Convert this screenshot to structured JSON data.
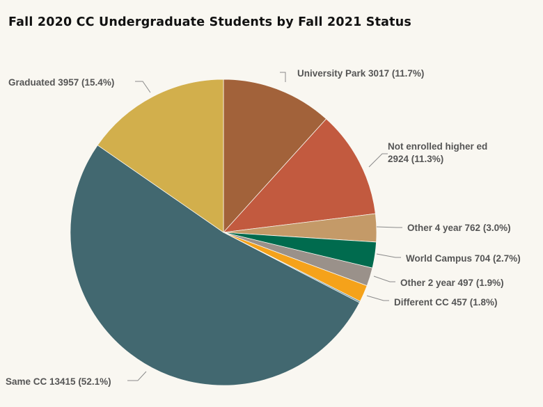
{
  "chart_data": {
    "type": "pie",
    "title": "Fall 2020 CC Undergraduate Students by Fall 2021 Status",
    "slices": [
      {
        "name": "University Park",
        "value": 3017,
        "percent": "11.7%",
        "color": "#a2623a"
      },
      {
        "name": "Not enrolled higher ed",
        "value": 2924,
        "percent": "11.3%",
        "color": "#c25a3f"
      },
      {
        "name": "Other 4 year",
        "value": 762,
        "percent": "3.0%",
        "color": "#c49a68"
      },
      {
        "name": "World Campus",
        "value": 704,
        "percent": "2.7%",
        "color": "#006b4e"
      },
      {
        "name": "Other 2 year",
        "value": 497,
        "percent": "1.9%",
        "color": "#9a918a"
      },
      {
        "name": "Different CC",
        "value": 457,
        "percent": "1.8%",
        "color": "#f5a21a"
      },
      {
        "name": "",
        "value": 40,
        "percent": "",
        "color": "#5a8a9a"
      },
      {
        "name": "Same CC",
        "value": 13415,
        "percent": "52.1%",
        "color": "#426870"
      },
      {
        "name": "Graduated",
        "value": 3957,
        "percent": "15.4%",
        "color": "#d2af4c"
      }
    ],
    "labels": [
      {
        "lines": [
          "University Park 3017 (11.7%)"
        ]
      },
      {
        "lines": [
          "Not enrolled higher ed",
          "2924 (11.3%)"
        ]
      },
      {
        "lines": [
          "Other 4 year 762 (3.0%)"
        ]
      },
      {
        "lines": [
          "World Campus 704 (2.7%)"
        ]
      },
      {
        "lines": [
          "Other 2 year 497 (1.9%)"
        ]
      },
      {
        "lines": [
          "Different CC 457 (1.8%)"
        ]
      },
      {
        "lines": []
      },
      {
        "lines": [
          "Same CC 13415 (52.1%)"
        ]
      },
      {
        "lines": [
          "Graduated 3957 (15.4%)"
        ]
      }
    ]
  }
}
